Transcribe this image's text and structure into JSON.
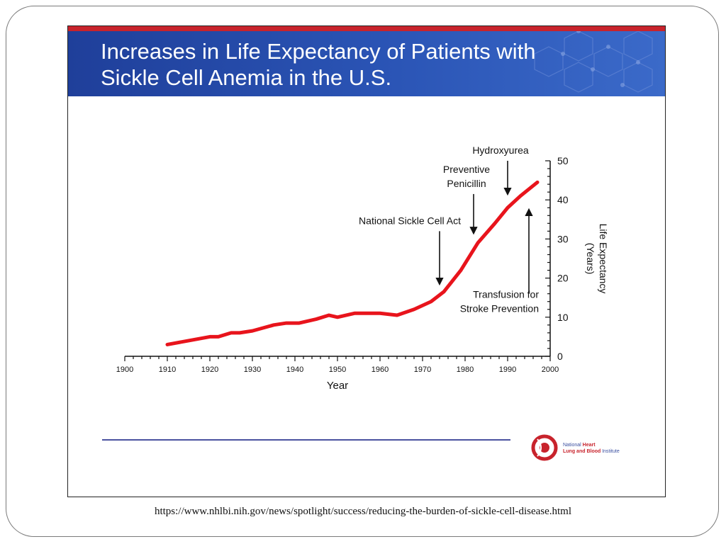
{
  "slide": {
    "title_lines": [
      "Increases in Life Expectancy of Patients with",
      "Sickle Cell Anemia in the U.S."
    ],
    "source_url": "https://www.nhlbi.nih.gov/news/spotlight/success/reducing-the-burden-of-sickle-cell-disease.html",
    "logo": {
      "line1_a": "National ",
      "line1_b": "Heart",
      "line2_a": "Lung and Blood",
      "line2_b": " Institute"
    },
    "colors": {
      "banner": "#2b55b6",
      "accent_red": "#c8232c",
      "line": "#e8141c",
      "rule": "#4b52a0"
    }
  },
  "chart_data": {
    "type": "line",
    "xlabel": "Year",
    "ylabel": "Life Expectancy (Years)",
    "xlim": [
      1900,
      2000
    ],
    "ylim": [
      0,
      50
    ],
    "x_ticks": [
      1900,
      1910,
      1920,
      1930,
      1940,
      1950,
      1960,
      1970,
      1980,
      1990,
      2000
    ],
    "y_ticks": [
      0,
      10,
      20,
      30,
      40,
      50
    ],
    "y_axis_side": "right",
    "grid": false,
    "series": [
      {
        "color": "#e8141c",
        "x": [
          1910,
          1915,
          1920,
          1922,
          1925,
          1927,
          1930,
          1935,
          1938,
          1941,
          1945,
          1948,
          1950,
          1954,
          1960,
          1964,
          1968,
          1972,
          1975,
          1979,
          1983,
          1987,
          1990,
          1993,
          1997
        ],
        "y": [
          3,
          4,
          5,
          5,
          6,
          6,
          6.5,
          8,
          8.5,
          8.5,
          9.5,
          10.5,
          10,
          11,
          11,
          10.5,
          12,
          14,
          16.5,
          22,
          29,
          34,
          38,
          41,
          44.5
        ]
      }
    ],
    "annotations": [
      {
        "lines": [
          "Hydroxyurea"
        ],
        "arrow_x": 1990,
        "arrow_from_y": 50,
        "arrow_to_y": 41.5,
        "direction": "down"
      },
      {
        "lines": [
          "Preventive",
          "Penicillin"
        ],
        "arrow_x": 1982,
        "arrow_from_y": 41.5,
        "arrow_to_y": 31.5,
        "direction": "down"
      },
      {
        "lines": [
          "National Sickle Cell Act"
        ],
        "arrow_x": 1974,
        "arrow_from_y": 32,
        "arrow_to_y": 18.5,
        "direction": "down"
      },
      {
        "lines": [
          "Transfusion for",
          "Stroke Prevention"
        ],
        "arrow_x": 1995,
        "arrow_from_y": 16,
        "arrow_to_y": 37.5,
        "direction": "up"
      }
    ]
  }
}
